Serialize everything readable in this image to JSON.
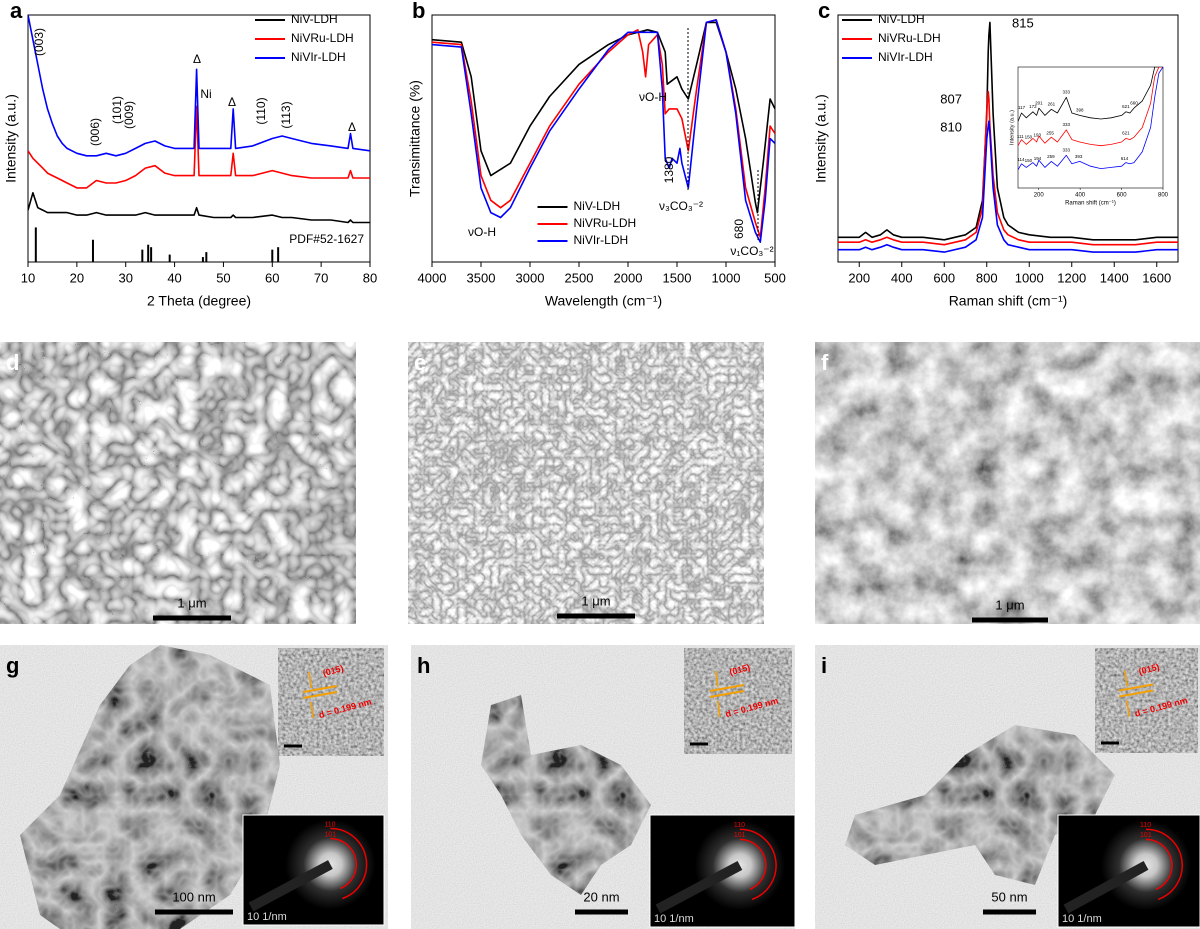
{
  "chart_data": [
    {
      "type": "line",
      "panel": "a",
      "xlabel": "2 Theta (degree)",
      "ylabel": "Intensity (a.u.)",
      "xlim": [
        10,
        80
      ],
      "xticks": [
        10,
        20,
        30,
        40,
        50,
        60,
        70,
        80
      ],
      "ylim": [
        0,
        100
      ],
      "legend": "upper right",
      "x": [
        10,
        11,
        12,
        13,
        14,
        15,
        16,
        17,
        18,
        20,
        22,
        24,
        26,
        28,
        30,
        32,
        34,
        36,
        38,
        40,
        42,
        44,
        44.5,
        45,
        48,
        51.5,
        52,
        52.5,
        56,
        60,
        62,
        64,
        68,
        72,
        75.5,
        76,
        76.5,
        80
      ],
      "series": [
        {
          "name": "NiV-LDH",
          "color": "#000000",
          "values": [
            21,
            28,
            22,
            21,
            20,
            20,
            20,
            20,
            20,
            19,
            19,
            20,
            19,
            19,
            19,
            19,
            20,
            19,
            19,
            19,
            19,
            19,
            22,
            19,
            18,
            18,
            19,
            18,
            18,
            19,
            18,
            18,
            17,
            17,
            16,
            17,
            16,
            16
          ]
        },
        {
          "name": "NiVRu-LDH",
          "color": "#ff0000",
          "values": [
            45,
            42,
            40,
            38,
            36,
            35,
            34,
            33,
            32,
            30,
            30,
            33,
            32,
            32,
            33,
            35,
            38,
            39,
            36,
            35,
            35,
            35,
            63,
            35,
            35,
            35,
            44,
            35,
            35,
            37,
            36,
            35,
            34,
            34,
            34,
            37,
            34,
            34
          ]
        },
        {
          "name": "NiVIr-LDH",
          "color": "#0000ff",
          "values": [
            100,
            90,
            80,
            70,
            62,
            56,
            51,
            48,
            46,
            44,
            43,
            43,
            44,
            43,
            44,
            46,
            48,
            49,
            47,
            46,
            46,
            46,
            78,
            46,
            46,
            46,
            62,
            46,
            47,
            50,
            51,
            50,
            48,
            47,
            46,
            52,
            46,
            45
          ]
        }
      ],
      "reference": {
        "name": "PDF#52-1627",
        "x": [
          11.6,
          23.3,
          33.4,
          34.6,
          35.2,
          39,
          45.8,
          46.5,
          60,
          61.2
        ],
        "values": [
          14,
          9,
          5,
          7,
          6,
          3,
          2,
          4,
          5,
          6
        ]
      },
      "annotations": [
        "(003)",
        "(006)",
        "(101)",
        "(009)",
        "Δ",
        "Ni",
        "Δ",
        "(110)",
        "(113)",
        "Δ"
      ]
    },
    {
      "type": "line",
      "panel": "b",
      "xlabel": "Wavelength (cm⁻¹)",
      "ylabel": "Transimittance (%)",
      "xlim": [
        4000,
        500
      ],
      "xticks": [
        4000,
        3500,
        3000,
        2500,
        2000,
        1500,
        1000,
        500
      ],
      "ylim": [
        0,
        100
      ],
      "legend": "lower center",
      "series": [
        {
          "name": "NiV-LDH",
          "color": "#000000",
          "x": [
            4000,
            3700,
            3600,
            3500,
            3400,
            3200,
            3000,
            2800,
            2500,
            2200,
            2000,
            1800,
            1700,
            1620,
            1600,
            1500,
            1450,
            1385,
            1300,
            1200,
            1100,
            1000,
            900,
            800,
            700,
            680,
            620,
            550,
            500
          ],
          "values": [
            90,
            89,
            75,
            45,
            35,
            40,
            55,
            67,
            80,
            88,
            92,
            94,
            93,
            85,
            72,
            75,
            70,
            66,
            80,
            97,
            97,
            85,
            70,
            50,
            24,
            20,
            40,
            66,
            62
          ]
        },
        {
          "name": "NiVRu-LDH",
          "color": "#ff0000",
          "x": [
            4000,
            3700,
            3600,
            3500,
            3400,
            3300,
            3200,
            3000,
            2800,
            2500,
            2200,
            2000,
            1900,
            1850,
            1820,
            1790,
            1700,
            1650,
            1620,
            1580,
            1500,
            1450,
            1385,
            1300,
            1200,
            1100,
            1000,
            900,
            800,
            700,
            650,
            600,
            550,
            500
          ],
          "values": [
            89,
            88,
            65,
            35,
            25,
            22,
            25,
            40,
            55,
            72,
            85,
            92,
            94,
            85,
            75,
            88,
            92,
            80,
            60,
            62,
            62,
            58,
            45,
            70,
            97,
            98,
            85,
            62,
            30,
            16,
            10,
            30,
            55,
            52
          ]
        },
        {
          "name": "NiVIr-LDH",
          "color": "#0000ff",
          "x": [
            4000,
            3700,
            3600,
            3500,
            3400,
            3300,
            3200,
            3000,
            2800,
            2500,
            2200,
            2000,
            1700,
            1650,
            1620,
            1580,
            1550,
            1500,
            1470,
            1450,
            1385,
            1300,
            1200,
            1100,
            1000,
            900,
            800,
            700,
            650,
            600,
            550,
            500
          ],
          "values": [
            88,
            87,
            60,
            30,
            20,
            18,
            22,
            38,
            53,
            70,
            86,
            93,
            93,
            70,
            42,
            38,
            42,
            40,
            46,
            40,
            30,
            62,
            97,
            98,
            85,
            60,
            25,
            12,
            8,
            25,
            50,
            48
          ]
        }
      ],
      "annotations": [
        "νO-H",
        "νO-H",
        "1380",
        "ν₃CO₃⁻²",
        "680",
        "ν₁CO₃⁻²"
      ]
    },
    {
      "type": "line",
      "panel": "c",
      "xlabel": "Raman shift (cm⁻¹)",
      "ylabel": "Intensity (a.u.)",
      "xlim": [
        100,
        1700
      ],
      "xticks": [
        200,
        400,
        600,
        800,
        1000,
        1200,
        1400,
        1600
      ],
      "ylim": [
        0,
        100
      ],
      "legend": "upper left",
      "x": [
        100,
        200,
        230,
        260,
        300,
        330,
        360,
        400,
        500,
        600,
        700,
        750,
        780,
        800,
        807,
        810,
        815,
        830,
        850,
        880,
        900,
        950,
        1000,
        1100,
        1200,
        1300,
        1400,
        1500,
        1600,
        1700
      ],
      "series": [
        {
          "name": "NiV-LDH",
          "color": "#000000",
          "peaks": [
            815
          ],
          "values": [
            10,
            10,
            12,
            10,
            11,
            13,
            11,
            10,
            10,
            9,
            11,
            14,
            25,
            60,
            85,
            92,
            97,
            60,
            30,
            18,
            15,
            12,
            11,
            10,
            10,
            9,
            9,
            9,
            10,
            10
          ]
        },
        {
          "name": "NiVRu-LDH",
          "color": "#ff0000",
          "peaks": [
            807
          ],
          "values": [
            8,
            8,
            9,
            8,
            9,
            10,
            9,
            8,
            8,
            7,
            9,
            12,
            22,
            62,
            69,
            66,
            55,
            35,
            20,
            13,
            11,
            9,
            8,
            8,
            8,
            7,
            7,
            7,
            8,
            8
          ]
        },
        {
          "name": "NiVIr-LDH",
          "color": "#0000ff",
          "peaks": [
            810
          ],
          "values": [
            5,
            5,
            6,
            5,
            6,
            7,
            6,
            5,
            5,
            4,
            6,
            9,
            18,
            50,
            55,
            57,
            52,
            30,
            15,
            9,
            7,
            6,
            5,
            5,
            5,
            4,
            4,
            4,
            5,
            5
          ]
        }
      ]
    },
    {
      "type": "line",
      "xlabel": "Raman shift (cm⁻¹)",
      "ylabel": "Intensity (a.u.)",
      "xlim": [
        100,
        800
      ],
      "xticks": [
        200,
        400,
        600,
        800
      ],
      "ylim": [
        0,
        100
      ],
      "x": [
        100,
        117,
        140,
        172,
        190,
        201,
        230,
        261,
        290,
        333,
        360,
        398,
        450,
        500,
        550,
        600,
        621,
        640,
        660,
        700,
        740,
        760,
        780,
        800
      ],
      "series": [
        {
          "color": "#000000",
          "peaks": [
            117,
            172,
            201,
            261,
            333,
            398,
            621,
            660
          ],
          "values": [
            55,
            62,
            58,
            63,
            60,
            66,
            60,
            65,
            62,
            75,
            62,
            60,
            58,
            57,
            58,
            60,
            63,
            62,
            66,
            72,
            85,
            100,
            100,
            100
          ]
        },
        {
          "color": "#ff0000",
          "peaks": [
            111,
            150,
            193,
            255,
            333,
            621
          ],
          "values": [
            35,
            40,
            36,
            41,
            38,
            43,
            37,
            42,
            38,
            48,
            40,
            38,
            36,
            35,
            36,
            38,
            41,
            40,
            42,
            50,
            70,
            92,
            100,
            100
          ]
        },
        {
          "color": "#0000ff",
          "peaks": [
            114,
            150,
            194,
            259,
            333,
            393,
            614
          ],
          "values": [
            15,
            20,
            17,
            21,
            18,
            23,
            17,
            22,
            18,
            27,
            20,
            22,
            18,
            16,
            17,
            18,
            21,
            20,
            21,
            30,
            50,
            75,
            95,
            100
          ]
        }
      ]
    }
  ],
  "images": [
    {
      "panel": "d",
      "scale_bar": "1 μm"
    },
    {
      "panel": "e",
      "scale_bar": "1 μm"
    },
    {
      "panel": "f",
      "scale_bar": "1 μm"
    },
    {
      "panel": "g",
      "scale_bar": "100 nm",
      "hrtem": {
        "plane": "(015)",
        "spacing": "d = 0.199 nm"
      },
      "saed": {
        "rings": [
          "110",
          "101"
        ],
        "scale": "10 1/nm"
      }
    },
    {
      "panel": "h",
      "scale_bar": "20 nm",
      "hrtem": {
        "plane": "(015)",
        "spacing": "d = 0.199 nm"
      },
      "saed": {
        "rings": [
          "110",
          "101"
        ],
        "scale": "10 1/nm"
      }
    },
    {
      "panel": "i",
      "scale_bar": "50 nm",
      "hrtem": {
        "plane": "(015)",
        "spacing": "d = 0.199 nm"
      },
      "saed": {
        "rings": [
          "110",
          "101"
        ],
        "scale": "10 1/nm"
      }
    }
  ]
}
